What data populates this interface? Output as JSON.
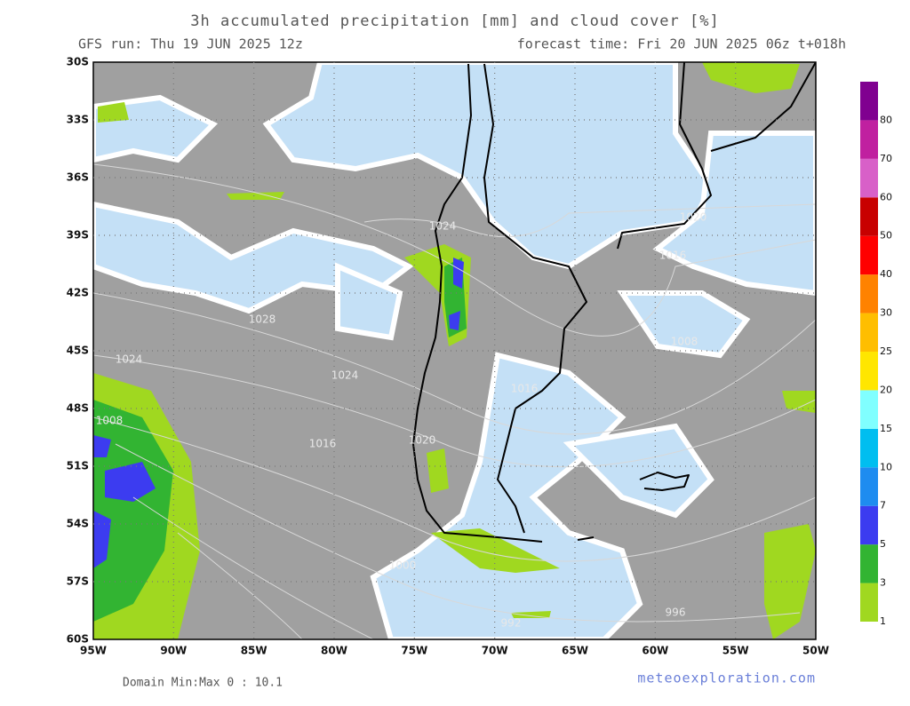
{
  "header": {
    "title": "3h accumulated precipitation [mm] and cloud cover [%]",
    "run": "GFS run: Thu 19 JUN 2025 12z",
    "forecast": "forecast time: Fri 20 JUN 2025 06z  t+018h"
  },
  "map": {
    "lat_labels": [
      "30S",
      "33S",
      "36S",
      "39S",
      "42S",
      "45S",
      "48S",
      "51S",
      "54S",
      "57S",
      "60S"
    ],
    "lon_labels": [
      "95W",
      "90W",
      "85W",
      "80W",
      "75W",
      "70W",
      "65W",
      "60W",
      "55W",
      "50W"
    ],
    "isobar_labels": [
      "1024",
      "1020",
      "1016",
      "1028",
      "1024",
      "1008",
      "1016",
      "1016",
      "1020",
      "1000",
      "992",
      "996",
      "1008",
      "1024"
    ]
  },
  "colorbar": {
    "labels": [
      "1",
      "3",
      "5",
      "7",
      "10",
      "15",
      "20",
      "25",
      "30",
      "40",
      "50",
      "60",
      "70",
      "80"
    ],
    "colors": [
      "#a0d820",
      "#32b432",
      "#3c3cf0",
      "#1e8cf0",
      "#00bef0",
      "#80ffff",
      "#ffe600",
      "#ffbe00",
      "#ff8200",
      "#ff0000",
      "#c80000",
      "#d860c8",
      "#c020a0",
      "#800090"
    ]
  },
  "footer": {
    "domain": "Domain Min:Max 0 : 10.1",
    "site": "meteoexploration.com"
  }
}
